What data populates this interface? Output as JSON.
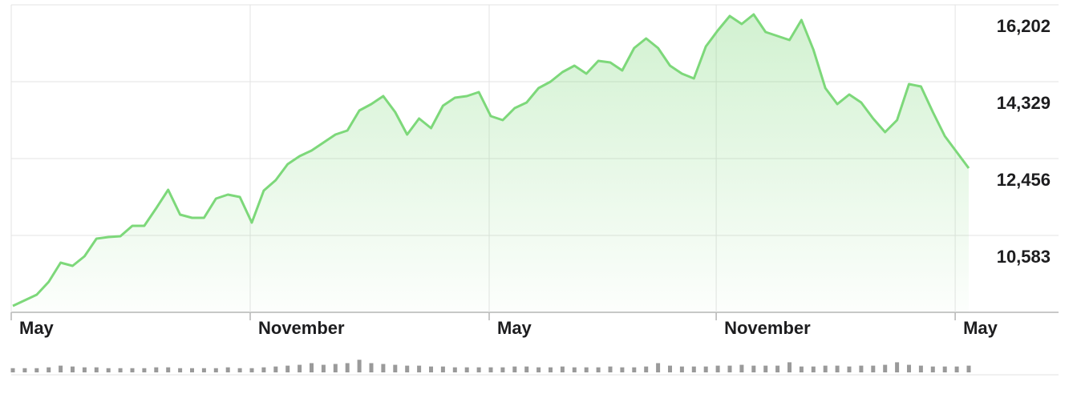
{
  "chart_data": {
    "type": "area",
    "color": "#7dd87a",
    "categories": [
      "May",
      null,
      null,
      null,
      null,
      null,
      null,
      null,
      null,
      null,
      null,
      null,
      null,
      null,
      null,
      null,
      null,
      null,
      null,
      null,
      "November",
      null,
      null,
      null,
      null,
      null,
      null,
      null,
      null,
      null,
      null,
      null,
      null,
      null,
      null,
      null,
      null,
      null,
      null,
      null,
      "May",
      null,
      null,
      null,
      null,
      null,
      null,
      null,
      null,
      null,
      null,
      null,
      null,
      null,
      null,
      null,
      null,
      null,
      null,
      "November",
      null,
      null,
      null,
      null,
      null,
      null,
      null,
      null,
      null,
      null,
      null,
      null,
      null,
      null,
      null,
      null,
      null,
      null,
      null,
      "May",
      null
    ],
    "values": [
      8866,
      9003,
      9139,
      9452,
      9920,
      9842,
      10076,
      10505,
      10544,
      10564,
      10817,
      10817,
      11246,
      11695,
      11090,
      11012,
      11012,
      11481,
      11578,
      11520,
      10895,
      11676,
      11929,
      12320,
      12515,
      12651,
      12846,
      13041,
      13139,
      13627,
      13783,
      13978,
      13588,
      13041,
      13432,
      13197,
      13744,
      13939,
      13978,
      14075,
      13490,
      13393,
      13685,
      13822,
      14173,
      14329,
      14563,
      14719,
      14524,
      14836,
      14797,
      14602,
      15148,
      15383,
      15148,
      14719,
      14524,
      14407,
      15187,
      15578,
      15929,
      15734,
      15968,
      15539,
      15441,
      15344,
      15831,
      15109,
      14173,
      13783,
      14017,
      13822,
      13432,
      13100,
      13393,
      14271,
      14212,
      13588,
      13002,
      12612,
      12222
    ],
    "volume": [
      5,
      5,
      5,
      6,
      8,
      7,
      6,
      6,
      5,
      5,
      5,
      5,
      6,
      6,
      5,
      5,
      5,
      5,
      6,
      5,
      5,
      6,
      7,
      8,
      9,
      11,
      9,
      10,
      11,
      15,
      11,
      10,
      9,
      8,
      8,
      7,
      7,
      6,
      6,
      6,
      6,
      6,
      7,
      7,
      6,
      6,
      7,
      6,
      6,
      6,
      7,
      6,
      6,
      7,
      11,
      8,
      7,
      7,
      7,
      8,
      8,
      9,
      8,
      8,
      8,
      12,
      7,
      7,
      8,
      8,
      7,
      8,
      8,
      9,
      12,
      9,
      8,
      7,
      7,
      7,
      8
    ],
    "volume_color": "#9a9a9a",
    "ylim": [
      8710,
      16202
    ],
    "yticks": [
      {
        "value": 16202,
        "label": "16,202"
      },
      {
        "value": 14329,
        "label": "14,329"
      },
      {
        "value": 12456,
        "label": "12,456"
      },
      {
        "value": 10583,
        "label": "10,583"
      }
    ],
    "grid": true
  }
}
